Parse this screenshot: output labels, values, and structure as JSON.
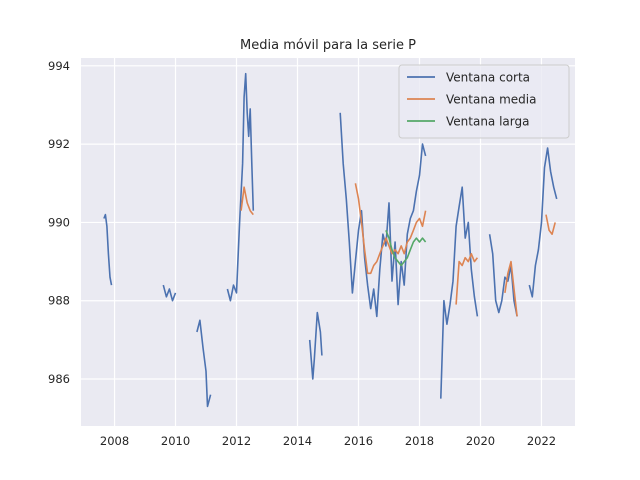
{
  "chart_data": {
    "type": "line",
    "title": "Media móvil para la serie P",
    "xlabel": "",
    "ylabel": "",
    "xlim": [
      2006.9,
      2023.1
    ],
    "ylim": [
      984.8,
      994.2
    ],
    "xticks": [
      "2008",
      "2010",
      "2012",
      "2014",
      "2016",
      "2018",
      "2020",
      "2022"
    ],
    "yticks": [
      "986",
      "988",
      "990",
      "992",
      "994"
    ],
    "grid": true,
    "legend_position": "top-right",
    "series": [
      {
        "name": "Ventana corta",
        "color": "#4c72b0",
        "segments": [
          [
            [
              2007.65,
              990.1
            ],
            [
              2007.7,
              990.2
            ],
            [
              2007.75,
              989.9
            ],
            [
              2007.8,
              989.2
            ],
            [
              2007.85,
              988.6
            ],
            [
              2007.9,
              988.4
            ]
          ],
          [
            [
              2009.6,
              988.4
            ],
            [
              2009.7,
              988.1
            ],
            [
              2009.8,
              988.3
            ],
            [
              2009.9,
              988.0
            ],
            [
              2010.0,
              988.2
            ]
          ],
          [
            [
              2010.7,
              987.2
            ],
            [
              2010.8,
              987.5
            ],
            [
              2010.9,
              986.8
            ],
            [
              2011.0,
              986.2
            ],
            [
              2011.05,
              985.3
            ],
            [
              2011.15,
              985.6
            ]
          ],
          [
            [
              2011.7,
              988.3
            ],
            [
              2011.8,
              988.0
            ],
            [
              2011.9,
              988.4
            ],
            [
              2012.0,
              988.2
            ],
            [
              2012.1,
              990.0
            ],
            [
              2012.2,
              991.5
            ],
            [
              2012.25,
              993.2
            ],
            [
              2012.3,
              993.8
            ],
            [
              2012.35,
              992.8
            ],
            [
              2012.4,
              992.2
            ],
            [
              2012.45,
              992.9
            ],
            [
              2012.5,
              991.5
            ],
            [
              2012.55,
              990.3
            ]
          ],
          [
            [
              2014.4,
              987.0
            ],
            [
              2014.5,
              986.0
            ],
            [
              2014.55,
              986.5
            ],
            [
              2014.65,
              987.7
            ],
            [
              2014.75,
              987.2
            ],
            [
              2014.8,
              986.6
            ]
          ],
          [
            [
              2015.4,
              992.8
            ],
            [
              2015.5,
              991.5
            ],
            [
              2015.6,
              990.6
            ],
            [
              2015.7,
              989.5
            ],
            [
              2015.8,
              988.2
            ],
            [
              2015.9,
              989.0
            ],
            [
              2016.0,
              989.8
            ],
            [
              2016.1,
              990.3
            ],
            [
              2016.2,
              989.1
            ],
            [
              2016.3,
              988.4
            ],
            [
              2016.4,
              987.8
            ],
            [
              2016.5,
              988.3
            ],
            [
              2016.6,
              987.6
            ],
            [
              2016.7,
              988.8
            ],
            [
              2016.8,
              989.7
            ],
            [
              2016.9,
              989.4
            ],
            [
              2017.0,
              990.5
            ],
            [
              2017.1,
              988.5
            ],
            [
              2017.2,
              989.5
            ],
            [
              2017.3,
              987.9
            ],
            [
              2017.4,
              989.0
            ],
            [
              2017.5,
              988.4
            ],
            [
              2017.6,
              989.7
            ],
            [
              2017.7,
              990.1
            ],
            [
              2017.8,
              990.3
            ],
            [
              2017.9,
              990.8
            ],
            [
              2018.0,
              991.2
            ],
            [
              2018.1,
              992.0
            ],
            [
              2018.2,
              991.7
            ]
          ],
          [
            [
              2018.7,
              985.5
            ],
            [
              2018.8,
              988.0
            ],
            [
              2018.9,
              987.4
            ],
            [
              2019.0,
              987.9
            ],
            [
              2019.1,
              988.5
            ],
            [
              2019.2,
              989.9
            ],
            [
              2019.3,
              990.4
            ],
            [
              2019.4,
              990.9
            ],
            [
              2019.5,
              989.6
            ],
            [
              2019.6,
              990.0
            ],
            [
              2019.7,
              988.8
            ],
            [
              2019.8,
              988.1
            ],
            [
              2019.9,
              987.6
            ]
          ],
          [
            [
              2020.3,
              989.7
            ],
            [
              2020.4,
              989.2
            ],
            [
              2020.5,
              988.0
            ],
            [
              2020.6,
              987.7
            ],
            [
              2020.7,
              988.0
            ],
            [
              2020.8,
              988.6
            ],
            [
              2020.9,
              988.5
            ],
            [
              2021.0,
              988.9
            ],
            [
              2021.1,
              988.0
            ],
            [
              2021.2,
              987.6
            ]
          ],
          [
            [
              2021.6,
              988.4
            ],
            [
              2021.7,
              988.1
            ],
            [
              2021.8,
              988.9
            ],
            [
              2021.9,
              989.3
            ],
            [
              2022.0,
              990.0
            ],
            [
              2022.1,
              991.4
            ],
            [
              2022.2,
              991.9
            ],
            [
              2022.3,
              991.3
            ],
            [
              2022.4,
              990.9
            ],
            [
              2022.5,
              990.6
            ]
          ]
        ]
      },
      {
        "name": "Ventana media",
        "color": "#dd8452",
        "segments": [
          [
            [
              2012.15,
              990.3
            ],
            [
              2012.25,
              990.9
            ],
            [
              2012.35,
              990.5
            ],
            [
              2012.45,
              990.3
            ],
            [
              2012.55,
              990.2
            ]
          ],
          [
            [
              2015.9,
              991.0
            ],
            [
              2016.0,
              990.6
            ],
            [
              2016.1,
              990.0
            ],
            [
              2016.2,
              989.3
            ],
            [
              2016.3,
              988.7
            ],
            [
              2016.4,
              988.7
            ],
            [
              2016.5,
              988.9
            ],
            [
              2016.6,
              989.0
            ],
            [
              2016.7,
              989.2
            ],
            [
              2016.8,
              989.4
            ],
            [
              2016.9,
              989.6
            ],
            [
              2017.0,
              989.4
            ],
            [
              2017.1,
              989.2
            ],
            [
              2017.2,
              989.3
            ],
            [
              2017.3,
              989.2
            ],
            [
              2017.4,
              989.4
            ],
            [
              2017.5,
              989.2
            ],
            [
              2017.6,
              989.5
            ],
            [
              2017.7,
              989.6
            ],
            [
              2017.8,
              989.8
            ],
            [
              2017.9,
              990.0
            ],
            [
              2018.0,
              990.1
            ],
            [
              2018.1,
              989.9
            ],
            [
              2018.2,
              990.3
            ]
          ],
          [
            [
              2019.2,
              987.9
            ],
            [
              2019.3,
              989.0
            ],
            [
              2019.4,
              988.9
            ],
            [
              2019.5,
              989.1
            ],
            [
              2019.6,
              989.0
            ],
            [
              2019.7,
              989.2
            ],
            [
              2019.8,
              989.0
            ],
            [
              2019.9,
              989.1
            ]
          ],
          [
            [
              2020.8,
              988.2
            ],
            [
              2020.9,
              988.7
            ],
            [
              2021.0,
              989.0
            ],
            [
              2021.1,
              988.3
            ],
            [
              2021.2,
              987.6
            ]
          ],
          [
            [
              2022.15,
              990.2
            ],
            [
              2022.25,
              989.8
            ],
            [
              2022.35,
              989.7
            ],
            [
              2022.45,
              990.0
            ]
          ]
        ]
      },
      {
        "name": "Ventana larga",
        "color": "#55a868",
        "segments": [
          [
            [
              2016.9,
              989.8
            ],
            [
              2017.0,
              989.6
            ],
            [
              2017.1,
              989.3
            ],
            [
              2017.2,
              989.1
            ],
            [
              2017.3,
              989.0
            ],
            [
              2017.4,
              988.9
            ],
            [
              2017.5,
              989.0
            ],
            [
              2017.6,
              989.1
            ],
            [
              2017.7,
              989.3
            ],
            [
              2017.8,
              989.5
            ],
            [
              2017.9,
              989.6
            ],
            [
              2018.0,
              989.5
            ],
            [
              2018.1,
              989.6
            ],
            [
              2018.2,
              989.5
            ]
          ]
        ]
      }
    ]
  }
}
